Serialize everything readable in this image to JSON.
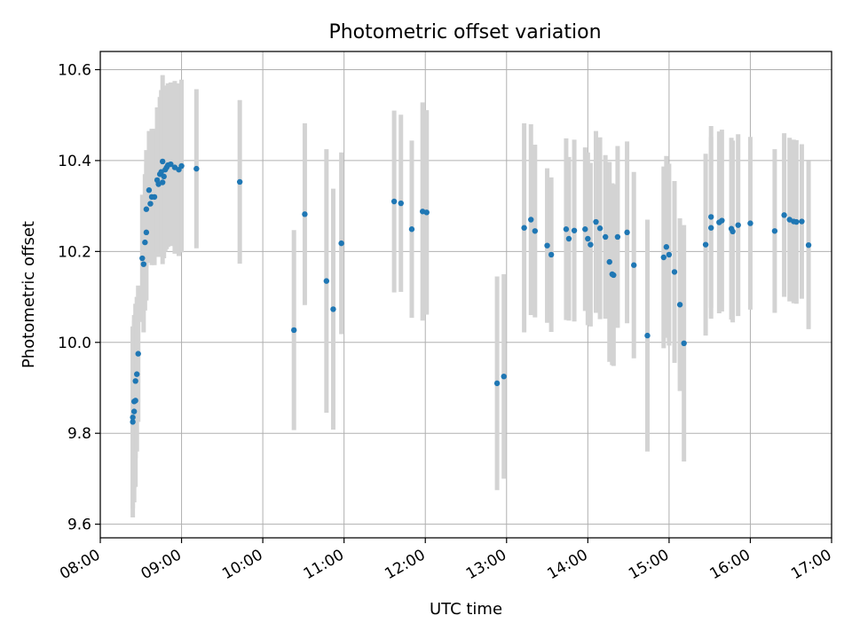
{
  "chart_data": {
    "type": "scatter",
    "title": "Photometric offset variation",
    "xlabel": "UTC time",
    "ylabel": "Photometric offset",
    "x_is_time": true,
    "xlim": [
      "08:00",
      "17:00"
    ],
    "ylim": [
      9.57,
      10.64
    ],
    "xticks": [
      "08:00",
      "09:00",
      "10:00",
      "11:00",
      "12:00",
      "13:00",
      "14:00",
      "15:00",
      "16:00",
      "17:00"
    ],
    "yticks": [
      9.6,
      9.8,
      10.0,
      10.2,
      10.4,
      10.6
    ],
    "ytick_labels": [
      "9.6",
      "9.8",
      "10.0",
      "10.2",
      "10.4",
      "10.6"
    ],
    "grid": true,
    "legend": "none",
    "colors": {
      "point": "#1f77b4",
      "errorbar": "#d3d3d3",
      "grid": "#b0b0b0",
      "axes": "#000000"
    },
    "points": [
      [
        "08:24",
        9.825,
        0.21
      ],
      [
        "08:24",
        9.835,
        0.2
      ],
      [
        "08:25",
        9.848,
        0.2
      ],
      [
        "08:25",
        9.87,
        0.19
      ],
      [
        "08:26",
        9.872,
        0.19
      ],
      [
        "08:26",
        9.915,
        0.17
      ],
      [
        "08:27",
        9.93,
        0.17
      ],
      [
        "08:28",
        9.975,
        0.15
      ],
      [
        "08:31",
        10.185,
        0.14
      ],
      [
        "08:32",
        10.172,
        0.15
      ],
      [
        "08:33",
        10.22,
        0.15
      ],
      [
        "08:34",
        10.242,
        0.15
      ],
      [
        "08:34",
        10.293,
        0.13
      ],
      [
        "08:36",
        10.335,
        0.13
      ],
      [
        "08:37",
        10.305,
        0.13
      ],
      [
        "08:38",
        10.32,
        0.15
      ],
      [
        "08:40",
        10.32,
        0.15
      ],
      [
        "08:42",
        10.357,
        0.16
      ],
      [
        "08:43",
        10.348,
        0.16
      ],
      [
        "08:44",
        10.37,
        0.17
      ],
      [
        "08:45",
        10.375,
        0.18
      ],
      [
        "08:46",
        10.398,
        0.19
      ],
      [
        "08:46",
        10.352,
        0.18
      ],
      [
        "08:47",
        10.365,
        0.18
      ],
      [
        "08:48",
        10.38,
        0.18
      ],
      [
        "08:49",
        10.385,
        0.18
      ],
      [
        "08:50",
        10.39,
        0.18
      ],
      [
        "08:52",
        10.392,
        0.18
      ],
      [
        "08:55",
        10.385,
        0.19
      ],
      [
        "08:58",
        10.38,
        0.19
      ],
      [
        "09:00",
        10.388,
        0.19
      ],
      [
        "09:11",
        10.382,
        0.175
      ],
      [
        "09:43",
        10.353,
        0.18
      ],
      [
        "10:23",
        10.027,
        0.22
      ],
      [
        "10:31",
        10.282,
        0.2
      ],
      [
        "10:47",
        10.135,
        0.29
      ],
      [
        "10:52",
        10.073,
        0.265
      ],
      [
        "10:58",
        10.218,
        0.2
      ],
      [
        "11:37",
        10.31,
        0.2
      ],
      [
        "11:42",
        10.306,
        0.195
      ],
      [
        "11:50",
        10.249,
        0.195
      ],
      [
        "11:58",
        10.288,
        0.24
      ],
      [
        "12:01",
        10.286,
        0.225
      ],
      [
        "12:53",
        9.91,
        0.235
      ],
      [
        "12:58",
        9.925,
        0.225
      ],
      [
        "13:13",
        10.252,
        0.23
      ],
      [
        "13:18",
        10.27,
        0.21
      ],
      [
        "13:21",
        10.245,
        0.19
      ],
      [
        "13:30",
        10.213,
        0.17
      ],
      [
        "13:33",
        10.193,
        0.17
      ],
      [
        "13:44",
        10.249,
        0.2
      ],
      [
        "13:46",
        10.228,
        0.18
      ],
      [
        "13:50",
        10.246,
        0.2
      ],
      [
        "13:58",
        10.249,
        0.18
      ],
      [
        "14:00",
        10.228,
        0.19
      ],
      [
        "14:02",
        10.215,
        0.18
      ],
      [
        "14:06",
        10.265,
        0.2
      ],
      [
        "14:09",
        10.251,
        0.2
      ],
      [
        "14:13",
        10.232,
        0.18
      ],
      [
        "14:16",
        10.177,
        0.22
      ],
      [
        "14:18",
        10.15,
        0.2
      ],
      [
        "14:19",
        10.148,
        0.2
      ],
      [
        "14:22",
        10.232,
        0.2
      ],
      [
        "14:29",
        10.242,
        0.2
      ],
      [
        "14:34",
        10.17,
        0.205
      ],
      [
        "14:44",
        10.015,
        0.255
      ],
      [
        "14:56",
        10.187,
        0.2
      ],
      [
        "14:58",
        10.21,
        0.2
      ],
      [
        "15:00",
        10.193,
        0.2
      ],
      [
        "15:04",
        10.155,
        0.2
      ],
      [
        "15:08",
        10.083,
        0.19
      ],
      [
        "15:11",
        9.998,
        0.26
      ],
      [
        "15:27",
        10.215,
        0.2
      ],
      [
        "15:31",
        10.276,
        0.2
      ],
      [
        "15:31",
        10.252,
        0.2
      ],
      [
        "15:37",
        10.264,
        0.2
      ],
      [
        "15:39",
        10.268,
        0.2
      ],
      [
        "15:46",
        10.25,
        0.2
      ],
      [
        "15:47",
        10.244,
        0.2
      ],
      [
        "15:51",
        10.258,
        0.2
      ],
      [
        "16:00",
        10.262,
        0.19
      ],
      [
        "16:18",
        10.245,
        0.18
      ],
      [
        "16:25",
        10.28,
        0.18
      ],
      [
        "16:29",
        10.27,
        0.18
      ],
      [
        "16:32",
        10.266,
        0.18
      ],
      [
        "16:34",
        10.265,
        0.18
      ],
      [
        "16:38",
        10.266,
        0.17
      ],
      [
        "16:43",
        10.214,
        0.185
      ]
    ]
  }
}
